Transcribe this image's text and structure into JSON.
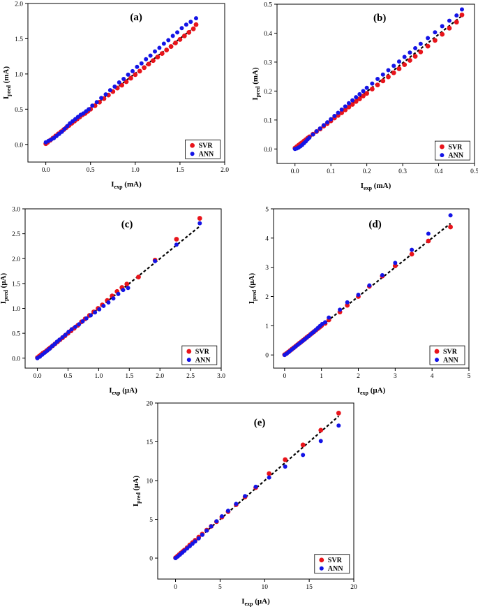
{
  "colors": {
    "svr": "#e8141b",
    "ann": "#1414e6",
    "fit": "#000000",
    "axis": "#000000"
  },
  "chart_data": [
    {
      "type": "scatter",
      "label": "(a)",
      "xlabel": {
        "main": "I",
        "sub": "exp",
        "unit": " (mA)"
      },
      "ylabel": {
        "main": "I",
        "sub": "pred",
        "unit": " (mA)"
      },
      "xlim": [
        -0.2,
        2.0
      ],
      "ylim": [
        -0.25,
        2.0
      ],
      "xticks": [
        "0.0",
        "0.5",
        "1.0",
        "1.5",
        "2.0"
      ],
      "xtick_values": [
        0,
        0.5,
        1.0,
        1.5,
        2.0
      ],
      "yticks": [
        "0.0",
        "0.5",
        "1.0",
        "1.5",
        "2.0"
      ],
      "ytick_values": [
        0,
        0.5,
        1.0,
        1.5,
        2.0
      ],
      "legend": [
        "SVR",
        "ANN"
      ],
      "fit_line": [
        [
          0,
          0.02
        ],
        [
          1.68,
          1.68
        ]
      ],
      "series": [
        {
          "name": "SVR",
          "x": [
            0.0,
            0.02,
            0.05,
            0.08,
            0.11,
            0.14,
            0.17,
            0.2,
            0.23,
            0.26,
            0.29,
            0.32,
            0.35,
            0.38,
            0.41,
            0.44,
            0.47,
            0.5,
            0.55,
            0.6,
            0.65,
            0.7,
            0.75,
            0.8,
            0.85,
            0.9,
            0.95,
            1.0,
            1.05,
            1.1,
            1.15,
            1.2,
            1.25,
            1.3,
            1.35,
            1.4,
            1.45,
            1.5,
            1.55,
            1.6,
            1.65,
            1.68
          ],
          "y": [
            0.01,
            0.03,
            0.06,
            0.09,
            0.12,
            0.15,
            0.18,
            0.21,
            0.24,
            0.27,
            0.3,
            0.33,
            0.36,
            0.39,
            0.42,
            0.44,
            0.47,
            0.5,
            0.55,
            0.6,
            0.65,
            0.7,
            0.75,
            0.8,
            0.84,
            0.89,
            0.94,
            0.99,
            1.04,
            1.09,
            1.14,
            1.19,
            1.24,
            1.29,
            1.34,
            1.39,
            1.44,
            1.49,
            1.54,
            1.59,
            1.64,
            1.7
          ]
        },
        {
          "name": "ANN",
          "x": [
            0.0,
            0.03,
            0.06,
            0.09,
            0.12,
            0.15,
            0.18,
            0.21,
            0.24,
            0.27,
            0.3,
            0.33,
            0.36,
            0.39,
            0.42,
            0.45,
            0.48,
            0.52,
            0.57,
            0.62,
            0.67,
            0.72,
            0.77,
            0.82,
            0.87,
            0.92,
            0.97,
            1.02,
            1.07,
            1.12,
            1.17,
            1.22,
            1.27,
            1.32,
            1.37,
            1.42,
            1.47,
            1.52,
            1.57,
            1.62,
            1.68
          ],
          "y": [
            0.03,
            0.05,
            0.07,
            0.09,
            0.12,
            0.15,
            0.18,
            0.22,
            0.26,
            0.3,
            0.33,
            0.36,
            0.39,
            0.42,
            0.44,
            0.47,
            0.5,
            0.55,
            0.6,
            0.66,
            0.71,
            0.77,
            0.82,
            0.88,
            0.93,
            0.99,
            1.04,
            1.1,
            1.15,
            1.21,
            1.26,
            1.32,
            1.37,
            1.43,
            1.48,
            1.54,
            1.59,
            1.65,
            1.7,
            1.74,
            1.79
          ]
        }
      ]
    },
    {
      "type": "scatter",
      "label": "(b)",
      "xlabel": {
        "main": "I",
        "sub": "exp",
        "unit": " (mA)"
      },
      "ylabel": {
        "main": "I",
        "sub": "pred",
        "unit": " (mA)"
      },
      "xlim": [
        -0.05,
        0.5
      ],
      "ylim": [
        -0.05,
        0.5
      ],
      "xticks": [
        "0.0",
        "0.1",
        "0.2",
        "0.3",
        "0.4",
        "0.5"
      ],
      "xtick_values": [
        0,
        0.1,
        0.2,
        0.3,
        0.4,
        0.5
      ],
      "yticks": [
        "0.0",
        "0.1",
        "0.2",
        "0.3",
        "0.4",
        "0.5"
      ],
      "ytick_values": [
        0,
        0.1,
        0.2,
        0.3,
        0.4,
        0.5
      ],
      "legend": [
        "SVR",
        "ANN"
      ],
      "fit_line": [
        [
          0,
          0.0
        ],
        [
          0.465,
          0.46
        ]
      ],
      "series": [
        {
          "name": "SVR",
          "x": [
            0.0,
            0.005,
            0.01,
            0.015,
            0.02,
            0.025,
            0.03,
            0.035,
            0.04,
            0.05,
            0.06,
            0.07,
            0.08,
            0.09,
            0.1,
            0.11,
            0.12,
            0.13,
            0.14,
            0.15,
            0.16,
            0.17,
            0.18,
            0.19,
            0.2,
            0.215,
            0.23,
            0.245,
            0.26,
            0.275,
            0.29,
            0.305,
            0.32,
            0.335,
            0.35,
            0.37,
            0.39,
            0.41,
            0.43,
            0.45,
            0.465
          ],
          "y": [
            0.003,
            0.008,
            0.013,
            0.018,
            0.022,
            0.027,
            0.032,
            0.037,
            0.042,
            0.051,
            0.06,
            0.069,
            0.079,
            0.088,
            0.097,
            0.107,
            0.116,
            0.125,
            0.135,
            0.145,
            0.154,
            0.164,
            0.173,
            0.183,
            0.192,
            0.207,
            0.221,
            0.235,
            0.249,
            0.263,
            0.277,
            0.291,
            0.306,
            0.32,
            0.335,
            0.355,
            0.375,
            0.396,
            0.417,
            0.438,
            0.463
          ]
        },
        {
          "name": "ANN",
          "x": [
            0.0,
            0.005,
            0.01,
            0.015,
            0.02,
            0.025,
            0.03,
            0.035,
            0.04,
            0.05,
            0.06,
            0.07,
            0.08,
            0.09,
            0.1,
            0.11,
            0.12,
            0.13,
            0.14,
            0.15,
            0.16,
            0.17,
            0.18,
            0.19,
            0.2,
            0.215,
            0.23,
            0.245,
            0.26,
            0.275,
            0.29,
            0.305,
            0.32,
            0.335,
            0.35,
            0.37,
            0.39,
            0.41,
            0.43,
            0.45,
            0.465
          ],
          "y": [
            0.0,
            0.002,
            0.005,
            0.009,
            0.014,
            0.02,
            0.026,
            0.033,
            0.039,
            0.05,
            0.061,
            0.071,
            0.082,
            0.092,
            0.103,
            0.114,
            0.125,
            0.136,
            0.147,
            0.158,
            0.168,
            0.179,
            0.189,
            0.2,
            0.211,
            0.226,
            0.242,
            0.257,
            0.272,
            0.287,
            0.302,
            0.318,
            0.333,
            0.348,
            0.363,
            0.383,
            0.403,
            0.424,
            0.443,
            0.461,
            0.482
          ]
        }
      ]
    },
    {
      "type": "scatter",
      "label": "(c)",
      "xlabel": {
        "main": "I",
        "sub": "exp",
        "unit": " (μA)"
      },
      "ylabel": {
        "main": "I",
        "sub": "pred",
        "unit": " (μA)"
      },
      "xlim": [
        -0.2,
        3.0
      ],
      "ylim": [
        -0.2,
        3.0
      ],
      "xticks": [
        "0.0",
        "0.5",
        "1.0",
        "1.5",
        "2.0",
        "2.5",
        "3.0"
      ],
      "xtick_values": [
        0,
        0.5,
        1.0,
        1.5,
        2.0,
        2.5,
        3.0
      ],
      "yticks": [
        "0.0",
        "0.5",
        "1.0",
        "1.5",
        "2.0",
        "2.5",
        "3.0"
      ],
      "ytick_values": [
        0,
        0.5,
        1.0,
        1.5,
        2.0,
        2.5,
        3.0
      ],
      "legend": [
        "SVR",
        "ANN"
      ],
      "fit_line": [
        [
          0,
          0.0
        ],
        [
          2.65,
          2.65
        ]
      ],
      "series": [
        {
          "name": "SVR",
          "x": [
            0.0,
            0.03,
            0.06,
            0.09,
            0.12,
            0.15,
            0.18,
            0.21,
            0.25,
            0.29,
            0.33,
            0.37,
            0.41,
            0.45,
            0.5,
            0.55,
            0.6,
            0.66,
            0.72,
            0.78,
            0.85,
            0.92,
            0.99,
            1.06,
            1.14,
            1.22,
            1.3,
            1.38,
            1.46,
            1.65,
            1.92,
            2.27,
            2.65
          ],
          "y": [
            0.01,
            0.04,
            0.07,
            0.1,
            0.12,
            0.15,
            0.18,
            0.21,
            0.25,
            0.29,
            0.33,
            0.37,
            0.41,
            0.45,
            0.5,
            0.55,
            0.6,
            0.66,
            0.73,
            0.79,
            0.86,
            0.93,
            1.0,
            1.07,
            1.16,
            1.25,
            1.34,
            1.42,
            1.49,
            1.63,
            1.97,
            2.39,
            2.81
          ]
        },
        {
          "name": "ANN",
          "x": [
            0.0,
            0.04,
            0.08,
            0.12,
            0.16,
            0.2,
            0.24,
            0.28,
            0.32,
            0.36,
            0.41,
            0.46,
            0.51,
            0.56,
            0.62,
            0.68,
            0.74,
            0.8,
            0.87,
            0.94,
            1.01,
            1.08,
            1.16,
            1.24,
            1.32,
            1.4,
            1.48,
            1.92,
            2.27,
            2.65
          ],
          "y": [
            0.0,
            0.03,
            0.07,
            0.11,
            0.15,
            0.19,
            0.24,
            0.28,
            0.33,
            0.37,
            0.42,
            0.47,
            0.53,
            0.58,
            0.63,
            0.68,
            0.74,
            0.8,
            0.86,
            0.92,
            0.98,
            1.05,
            1.12,
            1.2,
            1.29,
            1.37,
            1.41,
            1.95,
            2.28,
            2.71
          ]
        }
      ]
    },
    {
      "type": "scatter",
      "label": "(d)",
      "xlabel": {
        "main": "I",
        "sub": "exp",
        "unit": " (μA)"
      },
      "ylabel": {
        "main": "I",
        "sub": "pred",
        "unit": " (μA)"
      },
      "xlim": [
        -0.3,
        5.0
      ],
      "ylim": [
        -0.45,
        5.0
      ],
      "xticks": [
        "0",
        "1",
        "2",
        "3",
        "4",
        "5"
      ],
      "xtick_values": [
        0,
        1,
        2,
        3,
        4,
        5
      ],
      "yticks": [
        "0",
        "1",
        "2",
        "3",
        "4",
        "5"
      ],
      "ytick_values": [
        0,
        1,
        2,
        3,
        4,
        5
      ],
      "legend": [
        "SVR",
        "ANN"
      ],
      "fit_line": [
        [
          0,
          0.0
        ],
        [
          4.5,
          4.5
        ]
      ],
      "series": [
        {
          "name": "SVR",
          "x": [
            0.0,
            0.05,
            0.1,
            0.15,
            0.2,
            0.25,
            0.3,
            0.35,
            0.4,
            0.45,
            0.5,
            0.55,
            0.6,
            0.65,
            0.7,
            0.75,
            0.8,
            0.85,
            0.9,
            0.95,
            1.0,
            1.1,
            1.2,
            1.5,
            1.7,
            2.0,
            2.3,
            2.65,
            3.0,
            3.45,
            3.9,
            4.5
          ],
          "y": [
            0.01,
            0.05,
            0.1,
            0.15,
            0.2,
            0.25,
            0.3,
            0.35,
            0.4,
            0.45,
            0.5,
            0.55,
            0.6,
            0.65,
            0.7,
            0.75,
            0.8,
            0.85,
            0.9,
            0.95,
            1.0,
            1.08,
            1.2,
            1.47,
            1.7,
            2.0,
            2.35,
            2.7,
            3.05,
            3.45,
            3.9,
            4.38
          ]
        },
        {
          "name": "ANN",
          "x": [
            0.0,
            0.06,
            0.12,
            0.18,
            0.24,
            0.3,
            0.36,
            0.42,
            0.48,
            0.54,
            0.6,
            0.66,
            0.72,
            0.78,
            0.84,
            0.9,
            0.96,
            1.02,
            1.1,
            1.2,
            1.5,
            1.7,
            2.0,
            2.3,
            2.65,
            3.0,
            3.45,
            3.9,
            4.5
          ],
          "y": [
            0.0,
            0.05,
            0.11,
            0.17,
            0.23,
            0.29,
            0.35,
            0.41,
            0.47,
            0.53,
            0.59,
            0.65,
            0.72,
            0.78,
            0.85,
            0.92,
            0.99,
            1.06,
            1.12,
            1.28,
            1.55,
            1.8,
            2.06,
            2.38,
            2.73,
            3.15,
            3.6,
            4.15,
            4.78
          ]
        }
      ]
    },
    {
      "type": "scatter",
      "label": "(e)",
      "xlabel": {
        "main": "I",
        "sub": "exp",
        "unit": " (μA)"
      },
      "ylabel": {
        "main": "I",
        "sub": "pred",
        "unit": " (μA)"
      },
      "xlim": [
        -2.0,
        20.0
      ],
      "ylim": [
        -2.7,
        20.0
      ],
      "xticks": [
        "0",
        "5",
        "10",
        "15",
        "20"
      ],
      "xtick_values": [
        0,
        5,
        10,
        15,
        20
      ],
      "yticks": [
        "0",
        "5",
        "10",
        "15",
        "20"
      ],
      "ytick_values": [
        0,
        5,
        10,
        15,
        20
      ],
      "legend": [
        "SVR",
        "ANN"
      ],
      "fit_line": [
        [
          0,
          0.0
        ],
        [
          18.3,
          18.3
        ]
      ],
      "series": [
        {
          "name": "SVR",
          "x": [
            0.0,
            0.2,
            0.4,
            0.6,
            0.8,
            1.0,
            1.3,
            1.6,
            1.9,
            2.2,
            2.6,
            3.0,
            3.5,
            4.0,
            4.6,
            5.2,
            5.9,
            6.8,
            7.8,
            9.0,
            10.5,
            12.3,
            14.3,
            16.3,
            18.3
          ],
          "y": [
            0.05,
            0.25,
            0.45,
            0.65,
            0.85,
            1.05,
            1.35,
            1.7,
            2.0,
            2.3,
            2.7,
            3.1,
            3.6,
            4.1,
            4.7,
            5.3,
            6.0,
            6.9,
            7.9,
            9.1,
            10.9,
            12.7,
            14.6,
            16.5,
            18.7
          ]
        },
        {
          "name": "ANN",
          "x": [
            0.0,
            0.25,
            0.5,
            0.75,
            1.0,
            1.3,
            1.6,
            1.9,
            2.2,
            2.6,
            3.0,
            3.5,
            4.0,
            4.6,
            5.2,
            5.9,
            6.8,
            7.8,
            9.0,
            10.5,
            12.3,
            14.3,
            16.3,
            18.3
          ],
          "y": [
            0.0,
            0.2,
            0.45,
            0.7,
            0.95,
            1.25,
            1.55,
            1.85,
            2.15,
            2.55,
            3.0,
            3.55,
            4.1,
            4.75,
            5.4,
            6.1,
            7.0,
            8.0,
            9.2,
            10.4,
            11.8,
            13.3,
            15.1,
            17.1
          ]
        }
      ]
    }
  ]
}
